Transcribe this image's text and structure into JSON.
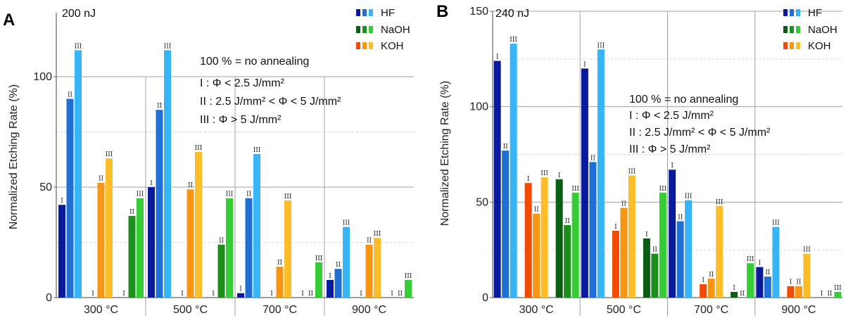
{
  "panels": [
    {
      "letter": "A",
      "energy_label": "200 nJ",
      "annotation": {
        "ref": "100 % = no annealing",
        "l1": "I : Φ < 2.5 J/mm²",
        "l2": "II :  2.5 J/mm² < Φ < 5 J/mm²",
        "l3": "III : Φ > 5 J/mm²"
      }
    },
    {
      "letter": "B",
      "energy_label": "240 nJ",
      "annotation": {
        "ref": "100 % = no annealing",
        "l1": "I : Φ < 2.5 J/mm²",
        "l2": "II :  2.5 J/mm² < Φ < 5 J/mm²",
        "l3": "III : Φ > 5 J/mm²"
      }
    }
  ],
  "legend": [
    {
      "name": "HF",
      "colors": [
        "#0a1a9c",
        "#1f6fd4",
        "#36b4f5"
      ]
    },
    {
      "name": "NaOH",
      "colors": [
        "#0b5d14",
        "#1c8f1c",
        "#35cc35"
      ]
    },
    {
      "name": "KOH",
      "colors": [
        "#f04b00",
        "#f79515",
        "#fbbd2a"
      ]
    }
  ],
  "colors": {
    "HF": [
      "#0a1a9c",
      "#1f6fd4",
      "#36b4f5"
    ],
    "NaOH": [
      "#0b5d14",
      "#1c8f1c",
      "#35cc35"
    ],
    "KOH": [
      "#f04b00",
      "#f79515",
      "#fbbd2a"
    ],
    "grid_major": "#a0a0a0",
    "grid_minor": "#d4d4d4"
  },
  "chart_data": [
    {
      "type": "bar",
      "ylabel": "Normalized Etching Rate (%)",
      "categories": [
        "300 °C",
        "500 °C",
        "700 °C",
        "900 °C"
      ],
      "ylim": [
        0,
        129
      ],
      "yticks": [
        0,
        50,
        100
      ],
      "fluence_labels": [
        "I",
        "II",
        "III"
      ],
      "series": [
        {
          "name": "HF",
          "values": [
            [
              42,
              90,
              112
            ],
            [
              50,
              85,
              112
            ],
            [
              2,
              45,
              65
            ],
            [
              8,
              13,
              32
            ]
          ]
        },
        {
          "name": "KOH",
          "values": [
            [
              0,
              52,
              63
            ],
            [
              0,
              49,
              66
            ],
            [
              0,
              14,
              44
            ],
            [
              0,
              24,
              27
            ]
          ]
        },
        {
          "name": "NaOH",
          "values": [
            [
              0,
              37,
              45
            ],
            [
              0,
              24,
              45
            ],
            [
              0,
              0,
              16
            ],
            [
              0,
              0,
              8
            ]
          ]
        }
      ]
    },
    {
      "type": "bar",
      "ylabel": "Normalized Etching Rate (%)",
      "categories": [
        "300 °C",
        "500 °C",
        "700 °C",
        "900 °C"
      ],
      "ylim": [
        0,
        150
      ],
      "yticks": [
        0,
        50,
        100,
        150
      ],
      "fluence_labels": [
        "I",
        "II",
        "III"
      ],
      "series": [
        {
          "name": "HF",
          "values": [
            [
              124,
              77,
              133
            ],
            [
              120,
              71,
              130
            ],
            [
              67,
              40,
              51
            ],
            [
              16,
              11,
              37
            ]
          ]
        },
        {
          "name": "KOH",
          "values": [
            [
              60,
              44,
              63
            ],
            [
              35,
              47,
              64
            ],
            [
              7,
              10,
              48
            ],
            [
              6,
              6,
              23
            ]
          ]
        },
        {
          "name": "NaOH",
          "values": [
            [
              62,
              38,
              55
            ],
            [
              31,
              23,
              55
            ],
            [
              3,
              0,
              18
            ],
            [
              0,
              0,
              3
            ]
          ]
        }
      ]
    }
  ]
}
